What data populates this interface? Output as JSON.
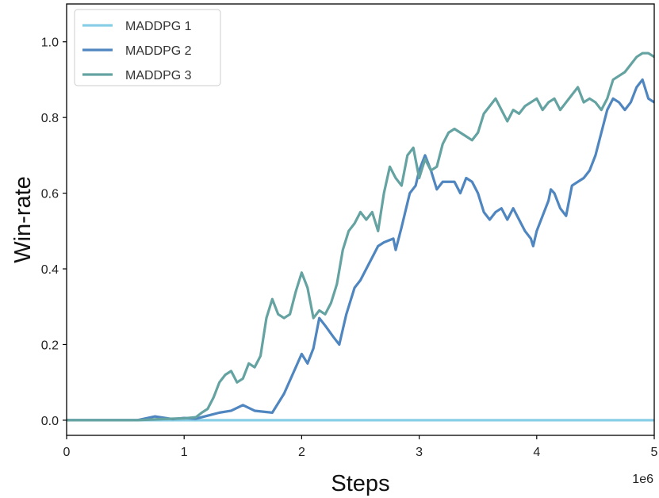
{
  "chart_data": {
    "type": "line",
    "xlabel": "Steps",
    "ylabel": "Win-rate",
    "x_offset_label": "1e6",
    "xlim": [
      0,
      5
    ],
    "ylim": [
      -0.04,
      1.1
    ],
    "xticks": [
      0,
      1,
      2,
      3,
      4,
      5
    ],
    "xtick_labels": [
      "0",
      "1",
      "2",
      "3",
      "4",
      "5"
    ],
    "yticks": [
      0.0,
      0.2,
      0.4,
      0.6,
      0.8,
      1.0
    ],
    "ytick_labels": [
      "0.0",
      "0.2",
      "0.4",
      "0.6",
      "0.8",
      "1.0"
    ],
    "grid": false,
    "legend_position": "top-left",
    "series": [
      {
        "name": "MADDPG 1",
        "color": "#87cee6",
        "points": [
          [
            0,
            0.0
          ],
          [
            5,
            0.0
          ]
        ]
      },
      {
        "name": "MADDPG 2",
        "color": "#4f86c0",
        "points": [
          [
            0,
            0.0
          ],
          [
            0.6,
            0.0
          ],
          [
            0.75,
            0.01
          ],
          [
            0.9,
            0.003
          ],
          [
            1.0,
            0.006
          ],
          [
            1.1,
            0.004
          ],
          [
            1.2,
            0.012
          ],
          [
            1.3,
            0.02
          ],
          [
            1.4,
            0.025
          ],
          [
            1.5,
            0.04
          ],
          [
            1.6,
            0.025
          ],
          [
            1.75,
            0.02
          ],
          [
            1.85,
            0.07
          ],
          [
            1.95,
            0.14
          ],
          [
            2.0,
            0.175
          ],
          [
            2.05,
            0.15
          ],
          [
            2.1,
            0.19
          ],
          [
            2.15,
            0.27
          ],
          [
            2.2,
            0.25
          ],
          [
            2.27,
            0.22
          ],
          [
            2.32,
            0.2
          ],
          [
            2.38,
            0.28
          ],
          [
            2.45,
            0.35
          ],
          [
            2.5,
            0.37
          ],
          [
            2.55,
            0.4
          ],
          [
            2.6,
            0.43
          ],
          [
            2.65,
            0.46
          ],
          [
            2.7,
            0.47
          ],
          [
            2.78,
            0.48
          ],
          [
            2.8,
            0.45
          ],
          [
            2.85,
            0.51
          ],
          [
            2.92,
            0.6
          ],
          [
            2.97,
            0.62
          ],
          [
            3.0,
            0.66
          ],
          [
            3.05,
            0.7
          ],
          [
            3.1,
            0.66
          ],
          [
            3.15,
            0.61
          ],
          [
            3.2,
            0.63
          ],
          [
            3.3,
            0.63
          ],
          [
            3.35,
            0.6
          ],
          [
            3.4,
            0.64
          ],
          [
            3.45,
            0.63
          ],
          [
            3.5,
            0.6
          ],
          [
            3.55,
            0.55
          ],
          [
            3.6,
            0.53
          ],
          [
            3.65,
            0.55
          ],
          [
            3.7,
            0.56
          ],
          [
            3.75,
            0.53
          ],
          [
            3.8,
            0.56
          ],
          [
            3.85,
            0.53
          ],
          [
            3.9,
            0.5
          ],
          [
            3.95,
            0.48
          ],
          [
            3.97,
            0.46
          ],
          [
            4.0,
            0.5
          ],
          [
            4.05,
            0.54
          ],
          [
            4.1,
            0.58
          ],
          [
            4.12,
            0.61
          ],
          [
            4.15,
            0.6
          ],
          [
            4.2,
            0.56
          ],
          [
            4.25,
            0.54
          ],
          [
            4.3,
            0.62
          ],
          [
            4.35,
            0.63
          ],
          [
            4.4,
            0.64
          ],
          [
            4.45,
            0.66
          ],
          [
            4.5,
            0.7
          ],
          [
            4.55,
            0.76
          ],
          [
            4.6,
            0.82
          ],
          [
            4.65,
            0.85
          ],
          [
            4.7,
            0.84
          ],
          [
            4.75,
            0.82
          ],
          [
            4.8,
            0.84
          ],
          [
            4.85,
            0.88
          ],
          [
            4.9,
            0.9
          ],
          [
            4.95,
            0.85
          ],
          [
            5.0,
            0.84
          ]
        ]
      },
      {
        "name": "MADDPG 3",
        "color": "#64a3a1",
        "points": [
          [
            0,
            0.0
          ],
          [
            0.6,
            0.0
          ],
          [
            0.8,
            0.003
          ],
          [
            1.0,
            0.005
          ],
          [
            1.1,
            0.008
          ],
          [
            1.15,
            0.02
          ],
          [
            1.2,
            0.03
          ],
          [
            1.25,
            0.06
          ],
          [
            1.3,
            0.1
          ],
          [
            1.35,
            0.12
          ],
          [
            1.4,
            0.13
          ],
          [
            1.45,
            0.1
          ],
          [
            1.5,
            0.11
          ],
          [
            1.55,
            0.15
          ],
          [
            1.6,
            0.14
          ],
          [
            1.65,
            0.17
          ],
          [
            1.7,
            0.27
          ],
          [
            1.75,
            0.32
          ],
          [
            1.8,
            0.28
          ],
          [
            1.85,
            0.27
          ],
          [
            1.9,
            0.28
          ],
          [
            1.95,
            0.34
          ],
          [
            2.0,
            0.39
          ],
          [
            2.05,
            0.35
          ],
          [
            2.1,
            0.27
          ],
          [
            2.15,
            0.29
          ],
          [
            2.2,
            0.28
          ],
          [
            2.25,
            0.31
          ],
          [
            2.3,
            0.36
          ],
          [
            2.35,
            0.45
          ],
          [
            2.4,
            0.5
          ],
          [
            2.45,
            0.52
          ],
          [
            2.5,
            0.55
          ],
          [
            2.55,
            0.53
          ],
          [
            2.6,
            0.55
          ],
          [
            2.65,
            0.5
          ],
          [
            2.7,
            0.6
          ],
          [
            2.75,
            0.67
          ],
          [
            2.8,
            0.64
          ],
          [
            2.85,
            0.62
          ],
          [
            2.9,
            0.7
          ],
          [
            2.95,
            0.72
          ],
          [
            3.0,
            0.64
          ],
          [
            3.05,
            0.69
          ],
          [
            3.1,
            0.66
          ],
          [
            3.15,
            0.67
          ],
          [
            3.2,
            0.73
          ],
          [
            3.25,
            0.76
          ],
          [
            3.3,
            0.77
          ],
          [
            3.35,
            0.76
          ],
          [
            3.4,
            0.75
          ],
          [
            3.45,
            0.74
          ],
          [
            3.5,
            0.76
          ],
          [
            3.55,
            0.81
          ],
          [
            3.6,
            0.83
          ],
          [
            3.65,
            0.85
          ],
          [
            3.7,
            0.82
          ],
          [
            3.75,
            0.79
          ],
          [
            3.8,
            0.82
          ],
          [
            3.85,
            0.81
          ],
          [
            3.9,
            0.83
          ],
          [
            3.95,
            0.84
          ],
          [
            4.0,
            0.85
          ],
          [
            4.05,
            0.82
          ],
          [
            4.1,
            0.84
          ],
          [
            4.15,
            0.85
          ],
          [
            4.2,
            0.82
          ],
          [
            4.25,
            0.84
          ],
          [
            4.3,
            0.86
          ],
          [
            4.35,
            0.88
          ],
          [
            4.4,
            0.84
          ],
          [
            4.45,
            0.85
          ],
          [
            4.5,
            0.84
          ],
          [
            4.55,
            0.82
          ],
          [
            4.6,
            0.85
          ],
          [
            4.65,
            0.9
          ],
          [
            4.7,
            0.91
          ],
          [
            4.75,
            0.92
          ],
          [
            4.8,
            0.94
          ],
          [
            4.85,
            0.96
          ],
          [
            4.9,
            0.97
          ],
          [
            4.95,
            0.97
          ],
          [
            5.0,
            0.96
          ]
        ]
      }
    ]
  }
}
